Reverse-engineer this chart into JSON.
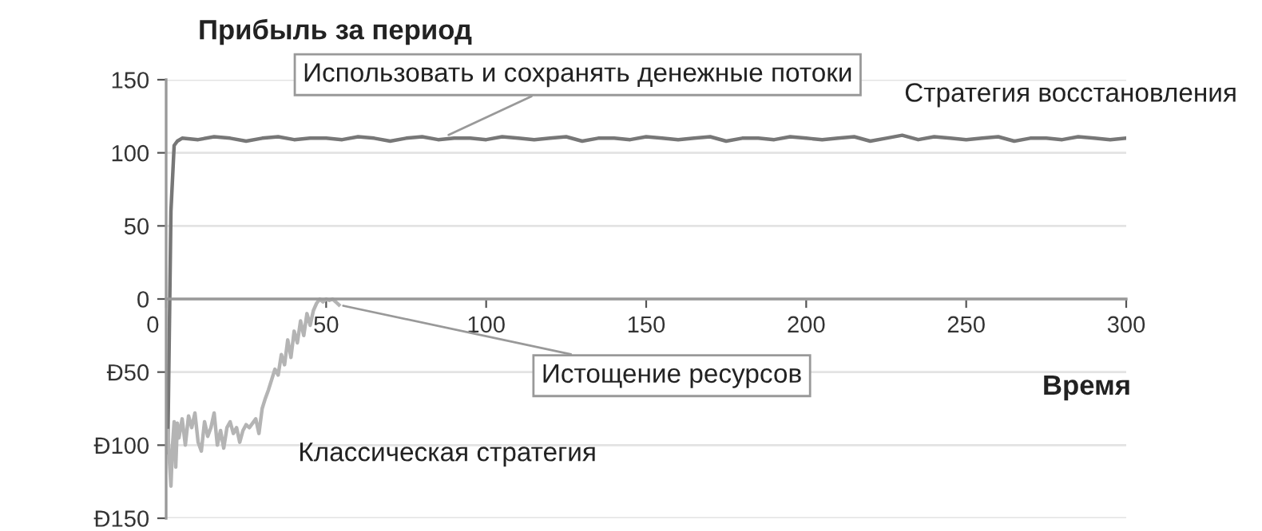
{
  "chart_data": {
    "type": "line",
    "ylabel": "Прибыль за период",
    "xlabel": "Время",
    "xlim": [
      0,
      300
    ],
    "xticks": [
      0,
      50,
      100,
      150,
      200,
      250,
      300
    ],
    "ylim": [
      -150,
      150
    ],
    "yticks": [
      150,
      100,
      50,
      0,
      {
        "value": -50,
        "label": "Ð50"
      },
      {
        "value": -100,
        "label": "Ð100"
      },
      {
        "value": -150,
        "label": "Ð150"
      }
    ],
    "grid": "y",
    "legend": false,
    "marker": "none",
    "line_style": "solid",
    "annotations": [
      {
        "text": "Использовать и сохранять денежные потоки",
        "x": 87,
        "y": 111
      },
      {
        "text": "Истощение ресурсов",
        "x": 54,
        "y": -4
      }
    ],
    "series": [
      {
        "name": "Стратегия восстановления",
        "color": "#777777",
        "x": [
          0.5,
          1.5,
          2.5,
          3.5,
          5,
          10,
          15,
          20,
          25,
          30,
          35,
          40,
          45,
          50,
          55,
          60,
          65,
          70,
          75,
          80,
          85,
          90,
          95,
          100,
          105,
          110,
          115,
          120,
          125,
          130,
          135,
          140,
          145,
          150,
          155,
          160,
          165,
          170,
          175,
          180,
          185,
          190,
          195,
          200,
          205,
          210,
          215,
          220,
          225,
          230,
          235,
          240,
          245,
          250,
          255,
          260,
          265,
          270,
          275,
          280,
          285,
          290,
          295,
          300
        ],
        "values": [
          -105,
          60,
          105,
          108,
          110,
          109,
          111,
          110,
          108,
          110,
          111,
          109,
          110,
          110,
          109,
          111,
          110,
          108,
          110,
          111,
          109,
          110,
          110,
          109,
          111,
          110,
          109,
          110,
          111,
          108,
          110,
          110,
          109,
          111,
          110,
          109,
          110,
          111,
          108,
          110,
          110,
          109,
          111,
          110,
          109,
          110,
          111,
          108,
          110,
          112,
          109,
          111,
          110,
          109,
          110,
          111,
          108,
          110,
          110,
          109,
          111,
          110,
          109,
          110
        ]
      },
      {
        "name": "Классическая стратегия",
        "color": "#b4b4b4",
        "x": [
          0.5,
          1,
          1.5,
          2,
          2.5,
          3,
          3.5,
          4,
          5,
          6,
          7,
          8,
          9,
          10,
          11,
          12,
          13,
          14,
          15,
          16,
          17,
          18,
          19,
          20,
          21,
          22,
          23,
          24,
          25,
          26,
          27,
          28,
          29,
          30,
          31,
          32,
          33,
          34,
          35,
          36,
          37,
          38,
          39,
          40,
          41,
          42,
          43,
          44,
          45,
          46,
          47,
          48,
          49,
          50,
          51,
          52,
          53,
          54
        ],
        "values": [
          -90,
          -110,
          -128,
          -100,
          -84,
          -115,
          -85,
          -95,
          -82,
          -100,
          -80,
          -88,
          -78,
          -98,
          -104,
          -84,
          -94,
          -88,
          -78,
          -100,
          -90,
          -102,
          -88,
          -84,
          -92,
          -88,
          -98,
          -90,
          -86,
          -88,
          -85,
          -82,
          -92,
          -75,
          -68,
          -62,
          -55,
          -48,
          -52,
          -38,
          -45,
          -28,
          -40,
          -22,
          -30,
          -15,
          -25,
          -10,
          -18,
          -8,
          -3,
          0,
          -2,
          0,
          -1,
          0,
          -2,
          -4
        ]
      }
    ]
  }
}
